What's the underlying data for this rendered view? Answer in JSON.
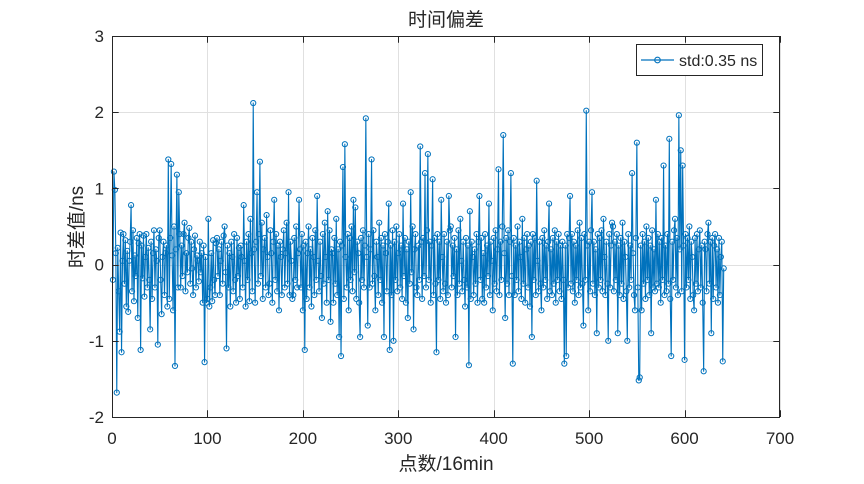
{
  "chart_data": {
    "type": "line",
    "title": "时间偏差",
    "xlabel": "点数/16min",
    "ylabel": "时差值/ns",
    "xlim": [
      0,
      700
    ],
    "ylim": [
      -2,
      3
    ],
    "xticks": [
      0,
      100,
      200,
      300,
      400,
      500,
      600,
      700
    ],
    "yticks": [
      -2,
      -1,
      0,
      1,
      2,
      3
    ],
    "grid": true,
    "legend": "top-right",
    "series": [
      {
        "name": "std:0.35 ns",
        "color": "#0072BD",
        "marker": "circle",
        "values": [
          -0.2,
          1.22,
          0.98,
          0.15,
          -1.68,
          0.22,
          -0.35,
          -0.88,
          0.42,
          -1.15,
          0.05,
          0.4,
          -0.25,
          0.32,
          -0.55,
          0.18,
          -0.62,
          0.05,
          0.3,
          0.78,
          -0.35,
          0.45,
          -0.48,
          0.12,
          -0.15,
          0.35,
          -0.7,
          0.28,
          0.4,
          -1.12,
          0.25,
          -0.18,
          0.38,
          -0.42,
          0.1,
          0.4,
          -0.3,
          0.22,
          -0.2,
          -0.85,
          0.3,
          -0.45,
          0.15,
          0.45,
          -0.3,
          0.2,
          0.05,
          -1.05,
          0.35,
          0.45,
          -0.2,
          -0.65,
          0.1,
          0.3,
          -0.4,
          0.15,
          0.25,
          -0.55,
          1.38,
          -0.45,
          0.35,
          1.32,
          0.12,
          -0.6,
          0.5,
          -1.33,
          0.2,
          1.18,
          -0.3,
          0.95,
          0.4,
          -0.3,
          0.25,
          -0.15,
          0.4,
          0.55,
          -0.35,
          0.15,
          -0.1,
          0.35,
          0.48,
          -0.25,
          0.3,
          -0.05,
          -0.4,
          0.2,
          0.38,
          -0.3,
          0.12,
          0.05,
          -0.22,
          0.3,
          -0.1,
          0.15,
          -0.5,
          0.25,
          -1.28,
          0.1,
          -0.5,
          -0.45,
          0.6,
          -0.55,
          -0.3,
          0.15,
          -0.48,
          0.32,
          -0.2,
          -0.4,
          0.28,
          0.35,
          -0.15,
          0.2,
          -0.4,
          0.05,
          0.3,
          -0.25,
          0.38,
          0.5,
          -0.1,
          -1.1,
          0.25,
          -0.3,
          0.15,
          -0.55,
          0.3,
          0.1,
          -0.35,
          0.4,
          -0.2,
          -0.5,
          0.35,
          -0.15,
          0.22,
          -0.45,
          0.25,
          0.1,
          -0.3,
          0.78,
          0.05,
          -0.55,
          0.3,
          -0.2,
          0.4,
          -0.48,
          0.6,
          0.15,
          -0.35,
          2.12,
          0.2,
          -0.5,
          0.3,
          0.95,
          -0.25,
          0.4,
          1.35,
          -0.15,
          0.55,
          -0.45,
          0.2,
          0.35,
          -0.3,
          0.65,
          0.1,
          -0.4,
          -0.25,
          0.45,
          0.15,
          -0.5,
          0.3,
          0.85,
          -0.2,
          0.4,
          -0.35,
          0.25,
          -0.6,
          0.3,
          0.1,
          -0.4,
          0.2,
          0.45,
          -0.3,
          0.15,
          0.55,
          -0.25,
          0.95,
          -0.4,
          0.3,
          0.05,
          -0.45,
          -0.4,
          0.35,
          -0.2,
          0.5,
          -0.3,
          0.15,
          0.85,
          0.2,
          -0.3,
          0.4,
          -0.6,
          0.25,
          -1.12,
          0.3,
          -0.45,
          0.15,
          0.5,
          -0.3,
          0.2,
          -0.55,
          0.35,
          0.1,
          -0.4,
          0.45,
          -0.2,
          0.9,
          0.05,
          -0.35,
          0.3,
          -0.15,
          -0.7,
          0.4,
          -0.25,
          0.55,
          0.1,
          -0.5,
          0.7,
          -0.2,
          0.45,
          -0.75,
          0.2,
          0.15,
          -0.5,
          0.35,
          -0.25,
          0.6,
          -0.4,
          0.2,
          -0.95,
          0.3,
          -1.2,
          0.25,
          1.28,
          -0.45,
          1.58,
          0.1,
          -0.3,
          0.4,
          -0.6,
          0.35,
          -0.2,
          0.5,
          -0.35,
          0.85,
          -0.1,
          0.75,
          -0.45,
          0.3,
          0.15,
          -0.5,
          -0.95,
          0.35,
          -0.2,
          0.45,
          -0.3,
          0.25,
          1.92,
          0.1,
          -0.8,
          0.4,
          -0.3,
          0.2,
          1.38,
          -0.25,
          0.45,
          -0.15,
          -0.6,
          0.3,
          0.1,
          -0.4,
          0.55,
          -0.2,
          0.35,
          -0.5,
          0.25,
          -0.95,
          0.4,
          0.15,
          -0.35,
          0.3,
          0.8,
          -1.12,
          0.25,
          -0.4,
          0.45,
          -1.0,
          0.3,
          -0.2,
          0.5,
          -0.35,
          0.15,
          0.4,
          -0.3,
          0.25,
          -0.45,
          0.8,
          -0.15,
          0.35,
          -0.5,
          0.2,
          -0.7,
          0.3,
          -0.25,
          0.95,
          -0.1,
          0.5,
          -0.85,
          0.2,
          0.4,
          -0.3,
          -0.4,
          0.25,
          -0.2,
          1.55,
          0.3,
          -0.45,
          0.35,
          -0.15,
          1.2,
          -0.3,
          0.45,
          1.45,
          -0.2,
          0.3,
          -0.5,
          0.25,
          1.12,
          -0.4,
          0.35,
          -0.25,
          -1.15,
          0.4,
          -0.2,
          0.3,
          -0.45,
          0.85,
          0.1,
          -0.35,
          0.4,
          -0.25,
          -0.5,
          0.3,
          -0.4,
          0.9,
          0.45,
          0.5,
          -0.3,
          0.25,
          -0.15,
          0.35,
          -0.95,
          0.2,
          -0.4,
          0.45,
          -0.25,
          0.6,
          0.05,
          -0.35,
          0.3,
          -0.2,
          -0.55,
          0.35,
          -0.3,
          0.25,
          -1.32,
          0.7,
          -0.45,
          0.3,
          0.1,
          -0.4,
          0.2,
          -0.25,
          0.4,
          -0.5,
          0.3,
          0.9,
          -0.2,
          0.35,
          -0.45,
          0.15,
          -0.5,
          0.4,
          -0.3,
          0.25,
          -0.15,
          0.8,
          -0.4,
          0.3,
          0.05,
          -0.6,
          0.35,
          -0.25,
          0.45,
          -0.35,
          0.2,
          1.25,
          -0.4,
          0.3,
          -0.2,
          0.5,
          1.7,
          0.15,
          -0.7,
          0.35,
          -0.25,
          0.45,
          -0.4,
          0.3,
          1.2,
          -0.15,
          -1.3,
          0.35,
          -0.4,
          0.25,
          -0.2,
          0.5,
          -0.35,
          0.3,
          0.1,
          -0.45,
          0.6,
          -0.25,
          0.35,
          -0.5,
          0.2,
          0.4,
          -0.3,
          0.25,
          -0.55,
          0.3,
          -0.95,
          0.4,
          -0.2,
          0.35,
          -0.4,
          1.1,
          0.05,
          -0.35,
          0.3,
          -0.25,
          -0.6,
          0.35,
          -0.3,
          0.45,
          -0.2,
          0.25,
          -0.45,
          0.3,
          0.8,
          -0.35,
          0.2,
          -0.4,
          0.35,
          -0.25,
          0.45,
          -0.5,
          0.3,
          -0.2,
          0.4,
          -0.35,
          0.25,
          -0.45,
          0.3,
          -0.2,
          -1.3,
          0.25,
          -1.2,
          0.4,
          -0.3,
          0.35,
          0.9,
          -0.25,
          0.4,
          -0.35,
          0.3,
          -0.5,
          0.25,
          -0.2,
          0.45,
          -0.4,
          0.55,
          -0.3,
          0.35,
          -0.25,
          -0.8,
          0.4,
          -0.2,
          2.02,
          0.25,
          -0.6,
          0.3,
          -0.35,
          0.45,
          0.95,
          -0.25,
          0.3,
          -0.4,
          0.2,
          -0.9,
          0.4,
          -0.3,
          0.35,
          -0.2,
          0.45,
          -0.35,
          0.6,
          0.1,
          -0.4,
          0.3,
          -0.25,
          -1.0,
          0.4,
          -0.3,
          0.25,
          0.55,
          0.5,
          -0.35,
          0.3,
          -0.2,
          0.4,
          -0.9,
          0.25,
          -0.4,
          0.35,
          -0.25,
          0.55,
          -0.45,
          0.3,
          0.1,
          -0.35,
          -1.0,
          0.4,
          -0.3,
          0.25,
          -0.2,
          1.2,
          0.15,
          -0.4,
          -0.6,
          0.35,
          1.6,
          -0.3,
          -1.52,
          -1.48,
          0.25,
          -0.6,
          0.4,
          -0.25,
          0.3,
          -0.45,
          0.5,
          -0.2,
          0.35,
          -0.4,
          0.25,
          -0.9,
          0.45,
          -0.3,
          0.2,
          -0.35,
          0.85,
          -0.25,
          0.4,
          -0.3,
          0.3,
          -0.5,
          0.35,
          -0.2,
          1.3,
          -0.4,
          0.25,
          -0.35,
          0.4,
          -0.25,
          1.65,
          -0.45,
          -1.2,
          0.3,
          -0.2,
          0.45,
          0.6,
          -0.3,
          0.35,
          -0.4,
          1.96,
          0.2,
          1.5,
          -0.35,
          1.3,
          0.25,
          -1.25,
          0.4,
          -0.3,
          0.35,
          -0.2,
          0.5,
          -0.45,
          0.3,
          0.1,
          -0.4,
          -0.6,
          0.35,
          -0.25,
          0.4,
          -0.35,
          0.2,
          0.45,
          -0.3,
          0.25,
          -0.5,
          -1.4,
          0.3,
          0.2,
          -0.35,
          0.4,
          0.55,
          -0.25,
          0.3,
          -0.9,
          0.35,
          -0.45,
          0.25,
          0.4,
          -0.3,
          0.2,
          -0.5,
          0.35,
          -0.4,
          0.1,
          0.3,
          -1.27,
          -0.05
        ]
      }
    ]
  }
}
